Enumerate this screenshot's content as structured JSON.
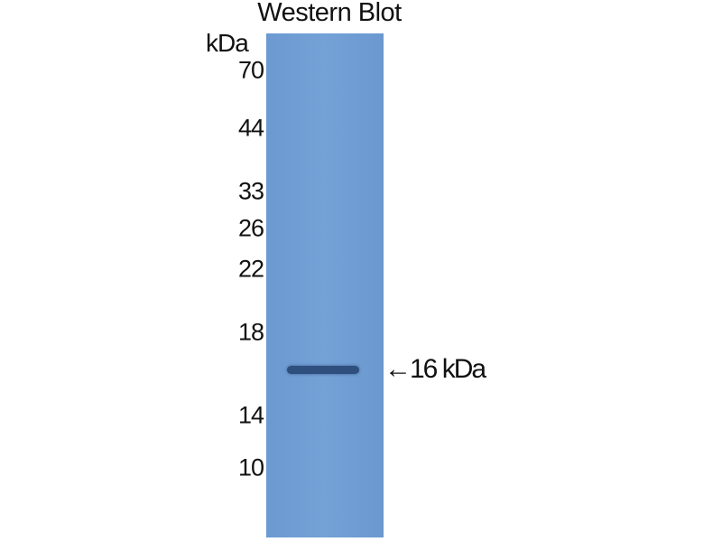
{
  "title": "Western Blot",
  "unit_label": "kDa",
  "markers": [
    "70",
    "44",
    "33",
    "26",
    "22",
    "18",
    "14",
    "10"
  ],
  "lane_color": "#72a0d5",
  "band_color": "#2f4f7e",
  "band_annotation": {
    "arrow": "←",
    "label": "16 kDa"
  }
}
